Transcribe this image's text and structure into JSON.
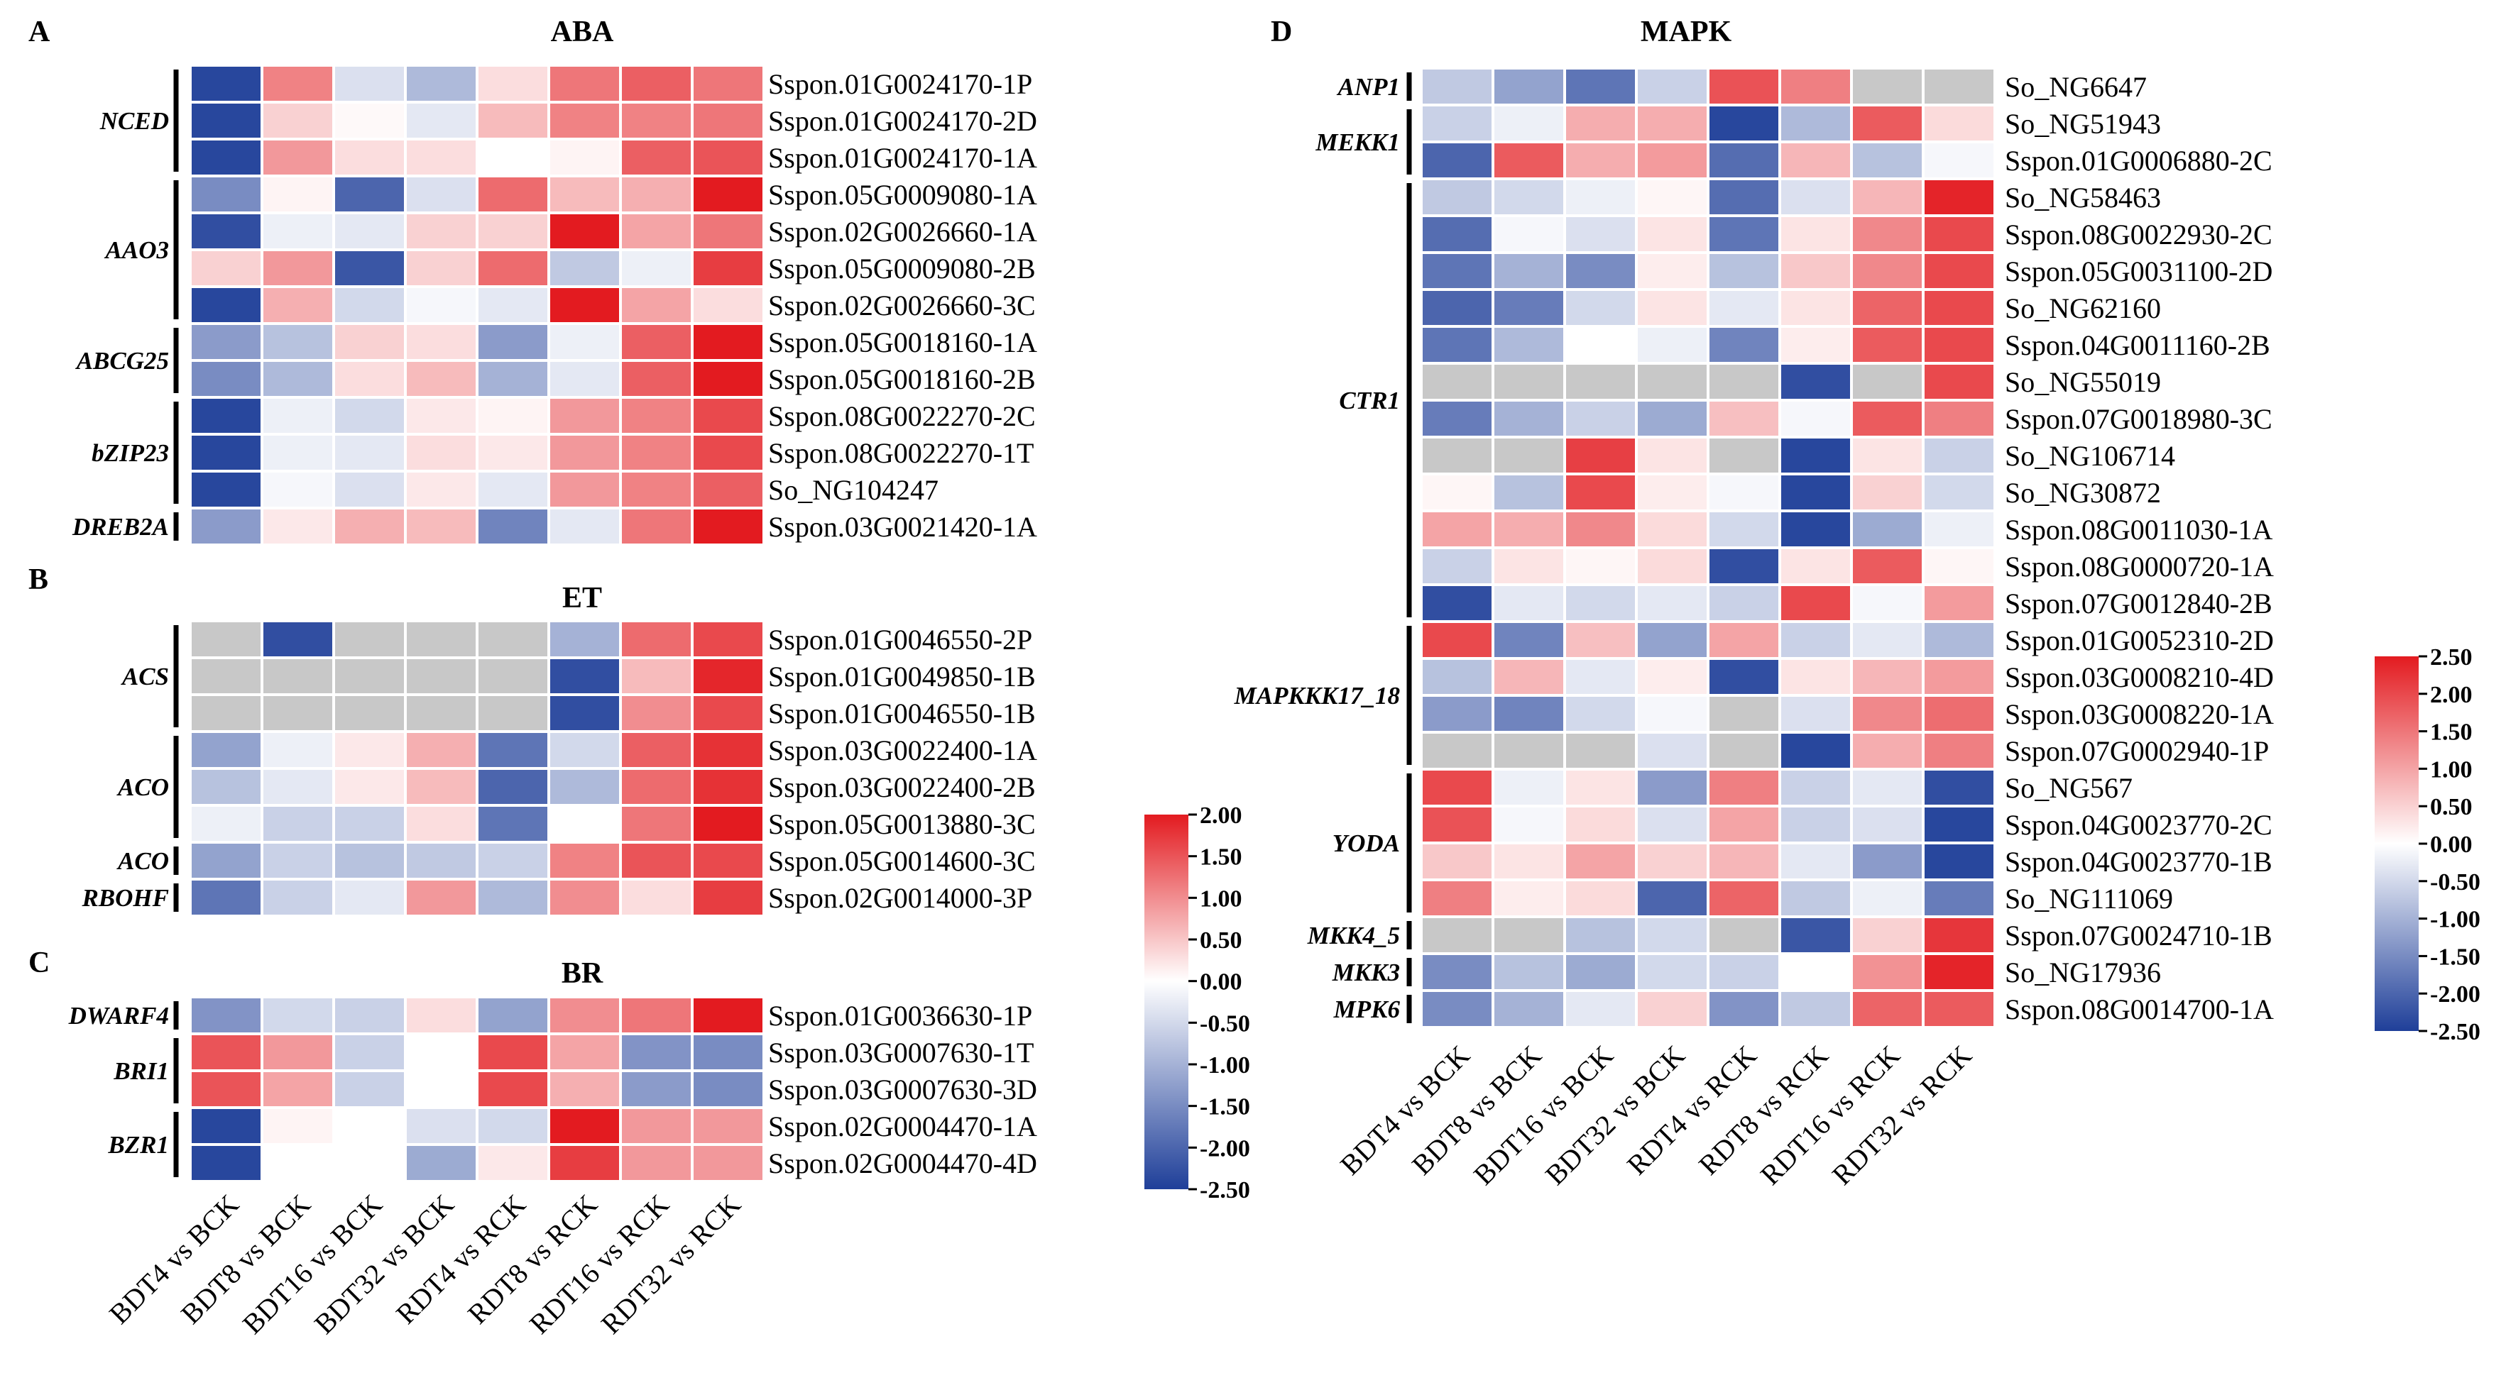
{
  "chart_data": [
    {
      "type": "heatmap",
      "panel": "A",
      "title": "ABA",
      "columns": [
        "BDT4 vs BCK",
        "BDT8 vs BCK",
        "BDT16 vs BCK",
        "BDT32 vs BCK",
        "RDT4 vs RCK",
        "RDT8 vs RCK",
        "RDT16 vs RCK",
        "RDT32 vs RCK"
      ],
      "rows": [
        "Sspon.01G0024170-1P",
        "Sspon.01G0024170-2D",
        "Sspon.01G0024170-1A",
        "Sspon.05G0009080-1A",
        "Sspon.02G0026660-1A",
        "Sspon.05G0009080-2B",
        "Sspon.02G0026660-3C",
        "Sspon.05G0018160-1A",
        "Sspon.05G0018160-2B",
        "Sspon.08G0022270-2C",
        "Sspon.08G0022270-1T",
        "So_NG104247",
        "Sspon.03G0021420-1A"
      ],
      "groups": [
        {
          "name": "NCED",
          "start": 0,
          "end": 2
        },
        {
          "name": "AAO3",
          "start": 3,
          "end": 6
        },
        {
          "name": "ABCG25",
          "start": 7,
          "end": 8
        },
        {
          "name": "bZIP23",
          "start": 9,
          "end": 11
        },
        {
          "name": "DREB2A",
          "start": 12,
          "end": 12
        }
      ],
      "values": [
        [
          -2.4,
          1.1,
          -0.4,
          -0.9,
          0.3,
          1.2,
          1.4,
          1.2
        ],
        [
          -2.4,
          0.4,
          0.05,
          -0.3,
          0.6,
          1.1,
          1.1,
          1.2
        ],
        [
          -2.4,
          0.9,
          0.3,
          0.3,
          0.0,
          0.1,
          1.4,
          1.5
        ],
        [
          -1.5,
          0.1,
          -2.0,
          -0.4,
          1.3,
          0.6,
          0.7,
          2.0
        ],
        [
          -2.3,
          -0.2,
          -0.3,
          0.4,
          0.4,
          2.1,
          0.8,
          1.2
        ],
        [
          0.4,
          0.9,
          -2.2,
          0.4,
          1.3,
          -0.7,
          -0.2,
          1.7
        ],
        [
          -2.4,
          0.7,
          -0.5,
          -0.1,
          -0.3,
          2.1,
          0.8,
          0.3
        ],
        [
          -1.3,
          -0.8,
          0.4,
          0.3,
          -1.3,
          -0.2,
          1.4,
          2.2
        ],
        [
          -1.5,
          -0.9,
          0.3,
          0.6,
          -1.0,
          -0.3,
          1.4,
          2.1
        ],
        [
          -2.4,
          -0.2,
          -0.5,
          0.2,
          0.1,
          0.9,
          1.1,
          1.6
        ],
        [
          -2.4,
          -0.2,
          -0.3,
          0.3,
          0.2,
          0.9,
          1.1,
          1.6
        ],
        [
          -2.4,
          -0.1,
          -0.4,
          0.2,
          -0.3,
          0.9,
          1.1,
          1.4
        ],
        [
          -1.3,
          0.2,
          0.7,
          0.6,
          -1.6,
          -0.3,
          1.2,
          2.0
        ]
      ],
      "colorbar": {
        "min": -2.5,
        "max": 2.0,
        "ticks": [
          "2.00",
          "1.50",
          "1.00",
          "0.50",
          "0.00",
          "-0.50",
          "-1.00",
          "-1.50",
          "-2.00",
          "-2.50"
        ]
      }
    },
    {
      "type": "heatmap",
      "panel": "B",
      "title": "ET",
      "columns": [
        "BDT4 vs BCK",
        "BDT8 vs BCK",
        "BDT16 vs BCK",
        "BDT32 vs BCK",
        "RDT4 vs RCK",
        "RDT8 vs RCK",
        "RDT16 vs RCK",
        "RDT32 vs RCK"
      ],
      "rows": [
        "Sspon.01G0046550-2P",
        "Sspon.01G0049850-1B",
        "Sspon.01G0046550-1B",
        "Sspon.03G0022400-1A",
        "Sspon.03G0022400-2B",
        "Sspon.05G0013880-3C",
        "Sspon.05G0014600-3C",
        "Sspon.02G0014000-3P"
      ],
      "groups": [
        {
          "name": "ACS",
          "start": 0,
          "end": 2
        },
        {
          "name": "ACO",
          "start": 3,
          "end": 5
        },
        {
          "name": "ACO",
          "start": 6,
          "end": 6
        },
        {
          "name": "RBOHF",
          "start": 7,
          "end": 7
        }
      ],
      "values": [
        [
          null,
          -2.3,
          null,
          null,
          null,
          -1.0,
          1.3,
          1.6
        ],
        [
          null,
          null,
          null,
          null,
          null,
          -2.3,
          0.6,
          1.9
        ],
        [
          null,
          null,
          null,
          null,
          null,
          -2.3,
          1.0,
          1.6
        ],
        [
          -1.2,
          -0.2,
          0.2,
          0.7,
          -1.8,
          -0.5,
          1.4,
          1.8
        ],
        [
          -0.8,
          -0.3,
          0.2,
          0.6,
          -2.0,
          -0.9,
          1.3,
          1.8
        ],
        [
          -0.2,
          -0.6,
          -0.6,
          0.3,
          -1.8,
          0.0,
          1.2,
          2.0
        ],
        [
          -1.2,
          -0.6,
          -0.8,
          -0.7,
          -0.6,
          1.1,
          1.5,
          1.6
        ],
        [
          -1.8,
          -0.6,
          -0.3,
          0.9,
          -0.9,
          1.0,
          0.3,
          1.7
        ]
      ]
    },
    {
      "type": "heatmap",
      "panel": "C",
      "title": "BR",
      "columns": [
        "BDT4 vs BCK",
        "BDT8 vs BCK",
        "BDT16 vs BCK",
        "BDT32 vs BCK",
        "RDT4 vs RCK",
        "RDT8 vs RCK",
        "RDT16 vs RCK",
        "RDT32 vs RCK"
      ],
      "rows": [
        "Sspon.01G0036630-1P",
        "Sspon.03G0007630-1T",
        "Sspon.03G0007630-3D",
        "Sspon.02G0004470-1A",
        "Sspon.02G0004470-4D"
      ],
      "groups": [
        {
          "name": "DWARF4",
          "start": 0,
          "end": 0
        },
        {
          "name": "BRI1",
          "start": 1,
          "end": 2
        },
        {
          "name": "BZR1",
          "start": 3,
          "end": 4
        }
      ],
      "values": [
        [
          -1.4,
          -0.5,
          -0.6,
          0.3,
          -1.2,
          1.0,
          1.2,
          2.0
        ],
        [
          1.5,
          0.9,
          -0.6,
          0.0,
          1.6,
          0.8,
          -1.4,
          -1.5
        ],
        [
          1.5,
          0.8,
          -0.6,
          0.0,
          1.6,
          0.7,
          -1.3,
          -1.5
        ],
        [
          -2.4,
          0.1,
          0.0,
          -0.4,
          -0.5,
          2.0,
          0.9,
          0.9
        ],
        [
          -2.4,
          0.0,
          0.0,
          -1.1,
          0.2,
          1.7,
          0.9,
          0.9
        ]
      ]
    },
    {
      "type": "heatmap",
      "panel": "D",
      "title": "MAPK",
      "columns": [
        "BDT4 vs BCK",
        "BDT8 vs BCK",
        "BDT16 vs BCK",
        "BDT32 vs BCK",
        "RDT4 vs RCK",
        "RDT8 vs RCK",
        "RDT16 vs RCK",
        "RDT32 vs RCK"
      ],
      "rows": [
        "So_NG6647",
        "So_NG51943",
        "Sspon.01G0006880-2C",
        "So_NG58463",
        "Sspon.08G0022930-2C",
        "Sspon.05G0031100-2D",
        "So_NG62160",
        "Sspon.04G0011160-2B",
        "So_NG55019",
        "Sspon.07G0018980-3C",
        "So_NG106714",
        "So_NG30872",
        "Sspon.08G0011030-1A",
        "Sspon.08G0000720-1A",
        "Sspon.07G0012840-2B",
        "Sspon.01G0052310-2D",
        "Sspon.03G0008210-4D",
        "Sspon.03G0008220-1A",
        "Sspon.07G0002940-1P",
        "So_NG567",
        "Sspon.04G0023770-2C",
        "Sspon.04G0023770-1B",
        "So_NG111069",
        "Sspon.07G0024710-1B",
        "So_NG17936",
        "Sspon.08G0014700-1A"
      ],
      "groups": [
        {
          "name": "ANP1",
          "start": 0,
          "end": 0
        },
        {
          "name": "MEKK1",
          "start": 1,
          "end": 2
        },
        {
          "name": "CTR1",
          "start": 3,
          "end": 14
        },
        {
          "name": "MAPKKK17_18",
          "start": 15,
          "end": 18
        },
        {
          "name": "YODA",
          "start": 19,
          "end": 22
        },
        {
          "name": "MKK4_5",
          "start": 23,
          "end": 23
        },
        {
          "name": "MKK3",
          "start": 24,
          "end": 24
        },
        {
          "name": "MPK6",
          "start": 25,
          "end": 25
        }
      ],
      "values": [
        [
          -0.7,
          -1.2,
          -1.8,
          -0.6,
          1.9,
          1.4,
          null,
          null
        ],
        [
          -0.6,
          -0.2,
          0.9,
          0.9,
          -2.4,
          -0.9,
          1.8,
          0.4
        ],
        [
          -2.0,
          1.8,
          0.9,
          1.1,
          -1.9,
          0.8,
          -0.8,
          -0.1
        ],
        [
          -0.7,
          -0.5,
          -0.2,
          0.1,
          -1.9,
          -0.4,
          0.8,
          2.4
        ],
        [
          -1.9,
          -0.1,
          -0.4,
          0.3,
          -1.8,
          0.3,
          1.3,
          2.0
        ],
        [
          -1.8,
          -1.0,
          -1.5,
          0.2,
          -0.8,
          0.6,
          1.3,
          2.0
        ],
        [
          -2.0,
          -1.7,
          -0.5,
          0.3,
          -0.3,
          0.3,
          1.7,
          2.0
        ],
        [
          -1.8,
          -0.9,
          0.0,
          -0.2,
          -1.6,
          0.2,
          1.8,
          2.0
        ],
        [
          null,
          null,
          null,
          null,
          null,
          -2.3,
          null,
          2.0
        ],
        [
          -1.7,
          -1.0,
          -0.6,
          -1.1,
          0.7,
          -0.1,
          1.8,
          1.4
        ],
        [
          null,
          null,
          2.1,
          0.3,
          null,
          -2.4,
          0.3,
          -0.6
        ],
        [
          0.1,
          -0.8,
          2.0,
          0.2,
          -0.1,
          -2.4,
          0.5,
          -0.5
        ],
        [
          1.0,
          0.9,
          1.3,
          0.4,
          -0.5,
          -2.4,
          -1.1,
          -0.2
        ],
        [
          -0.6,
          0.3,
          0.1,
          0.4,
          -2.3,
          0.3,
          1.8,
          0.1
        ],
        [
          -2.3,
          -0.3,
          -0.5,
          -0.3,
          -0.6,
          2.0,
          -0.1,
          1.1
        ],
        [
          2.0,
          -1.6,
          0.7,
          -1.2,
          1.0,
          -0.6,
          -0.3,
          -0.9
        ],
        [
          -0.8,
          0.8,
          -0.3,
          0.2,
          -2.3,
          0.3,
          0.8,
          1.1
        ],
        [
          -1.3,
          -1.6,
          -0.5,
          -0.1,
          null,
          -0.4,
          1.3,
          1.6
        ],
        [
          null,
          null,
          null,
          -0.4,
          null,
          -2.4,
          0.9,
          1.4
        ],
        [
          2.0,
          -0.2,
          0.3,
          -1.3,
          1.4,
          -0.6,
          -0.3,
          -2.3
        ],
        [
          1.9,
          -0.1,
          0.4,
          -0.4,
          1.0,
          -0.6,
          -0.4,
          -2.4
        ],
        [
          0.6,
          0.3,
          1.0,
          0.5,
          0.8,
          -0.3,
          -1.3,
          -2.4
        ],
        [
          1.4,
          0.2,
          0.4,
          -2.0,
          1.7,
          -0.7,
          -0.2,
          -1.7
        ],
        [
          null,
          null,
          -0.8,
          -0.5,
          null,
          -2.2,
          0.5,
          2.2
        ],
        [
          -1.5,
          -0.8,
          -1.1,
          -0.5,
          -0.6,
          0.0,
          1.2,
          2.4
        ],
        [
          -1.5,
          -1.0,
          -0.3,
          0.5,
          -1.4,
          -0.7,
          1.7,
          1.8
        ]
      ],
      "colorbar": {
        "min": -2.5,
        "max": 2.5,
        "ticks": [
          "2.50",
          "2.00",
          "1.50",
          "1.00",
          "0.50",
          "0.00",
          "-0.50",
          "-1.00",
          "-1.50",
          "-2.00",
          "-2.50"
        ]
      }
    }
  ],
  "colors": {
    "low": "#1f3f99",
    "mid": "#ffffff",
    "high": "#e31b20",
    "missing": "#c8c8c8"
  }
}
